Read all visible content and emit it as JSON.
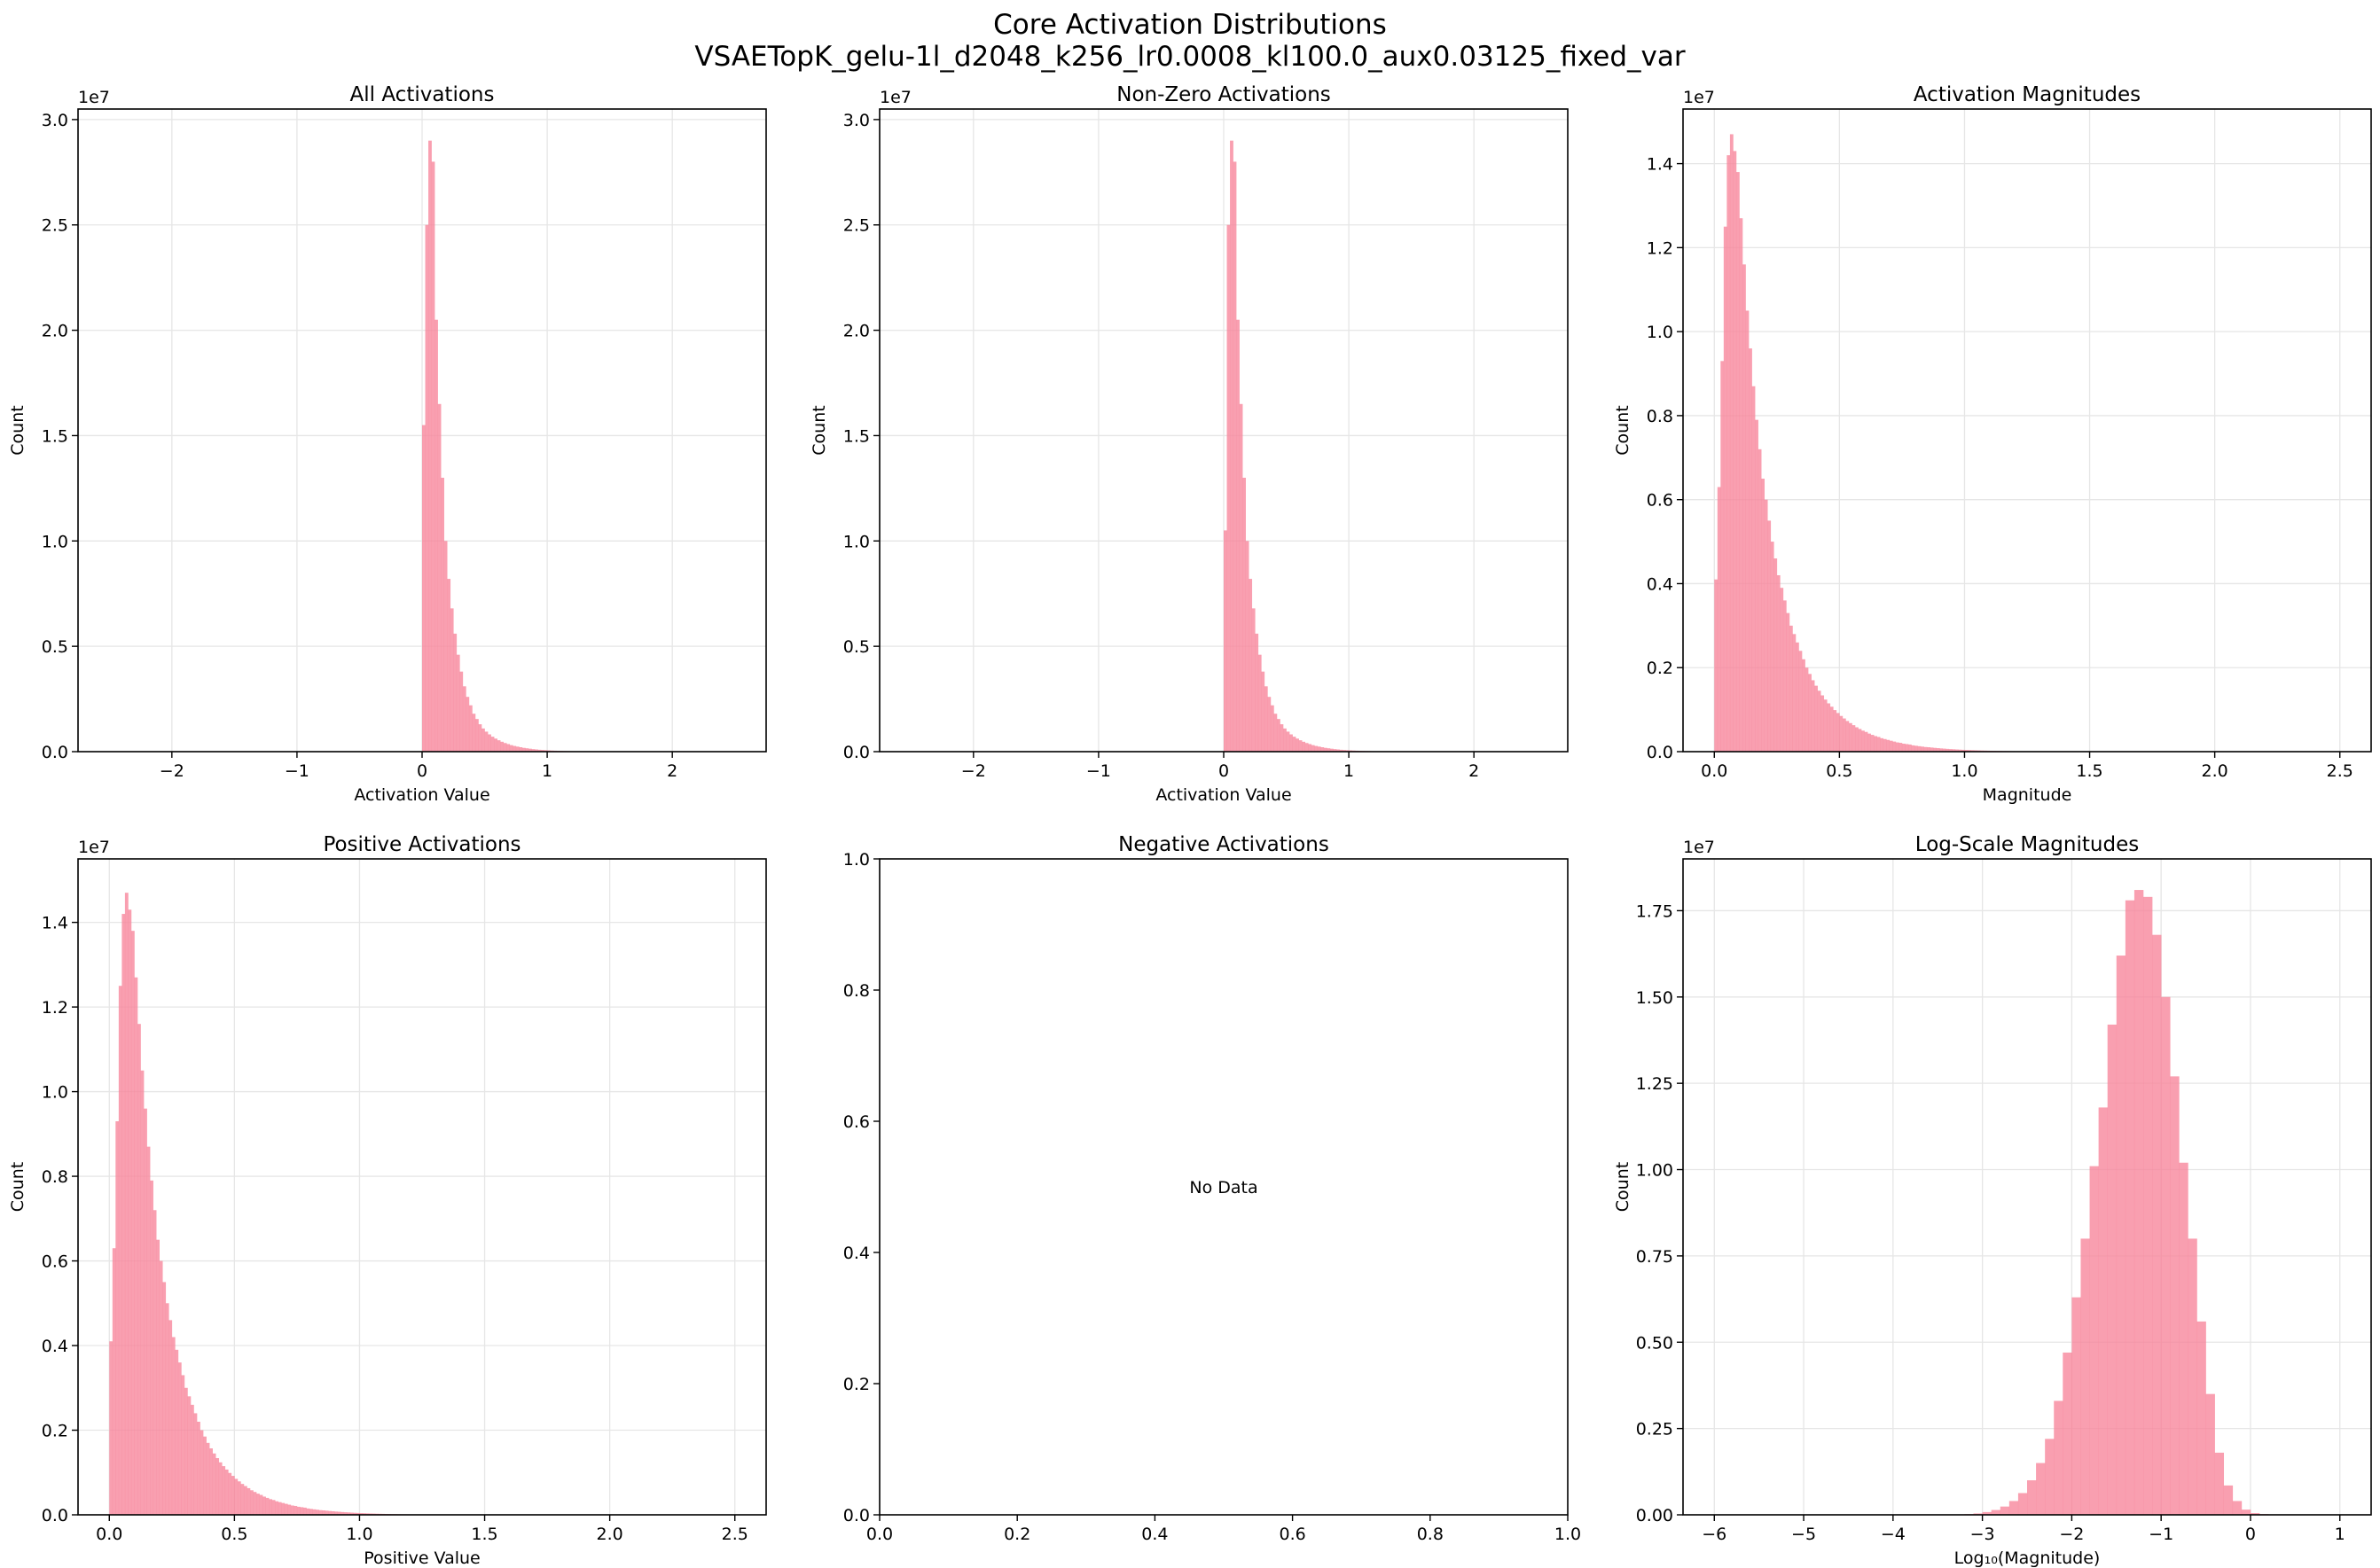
{
  "figure": {
    "title_line1": "Core Activation Distributions",
    "title_line2": "VSAETopK_gelu-1l_d2048_k256_lr0.0008_kl100.0_aux0.03125_fixed_var",
    "bar_color": "#f7879c",
    "grid_color": "#e6e6e6"
  },
  "chart_data": [
    {
      "type": "bar",
      "title": "All Activations",
      "xlabel": "Activation Value",
      "ylabel": "Count",
      "offset_label": "1e7",
      "xlim": [
        -2.75,
        2.75
      ],
      "ylim": [
        0,
        3.05
      ],
      "xticks": [
        -2,
        -1,
        0,
        1,
        2
      ],
      "xtick_labels": [
        "−2",
        "−1",
        "0",
        "1",
        "2"
      ],
      "yticks": [
        0,
        0.5,
        1.0,
        1.5,
        2.0,
        2.5,
        3.0
      ],
      "ytick_labels": [
        "0.0",
        "0.5",
        "1.0",
        "1.5",
        "2.0",
        "2.5",
        "3.0"
      ],
      "bin_start": 0.0,
      "bin_width": 0.025,
      "values": [
        1.55,
        2.5,
        2.9,
        2.8,
        2.05,
        1.65,
        1.3,
        1.0,
        0.82,
        0.68,
        0.56,
        0.46,
        0.38,
        0.31,
        0.26,
        0.22,
        0.18,
        0.155,
        0.13,
        0.11,
        0.095,
        0.082,
        0.071,
        0.062,
        0.054,
        0.047,
        0.041,
        0.036,
        0.031,
        0.027,
        0.024,
        0.021,
        0.018,
        0.016,
        0.014,
        0.012,
        0.0105,
        0.009,
        0.008,
        0.007,
        0.006,
        0.0052,
        0.0045,
        0.0039,
        0.0034,
        0.003,
        0.0026,
        0.0022,
        0.0019,
        0.0017,
        0.0014,
        0.0012,
        0.001,
        0.0008,
        0.0007,
        0.0005,
        0.0004,
        0.0003
      ]
    },
    {
      "type": "bar",
      "title": "Non-Zero Activations",
      "xlabel": "Activation Value",
      "ylabel": "Count",
      "offset_label": "1e7",
      "xlim": [
        -2.75,
        2.75
      ],
      "ylim": [
        0,
        3.05
      ],
      "xticks": [
        -2,
        -1,
        0,
        1,
        2
      ],
      "xtick_labels": [
        "−2",
        "−1",
        "0",
        "1",
        "2"
      ],
      "yticks": [
        0,
        0.5,
        1.0,
        1.5,
        2.0,
        2.5,
        3.0
      ],
      "ytick_labels": [
        "0.0",
        "0.5",
        "1.0",
        "1.5",
        "2.0",
        "2.5",
        "3.0"
      ],
      "bin_start": 0.0,
      "bin_width": 0.025,
      "values": [
        1.05,
        2.5,
        2.9,
        2.8,
        2.05,
        1.65,
        1.3,
        1.0,
        0.82,
        0.68,
        0.56,
        0.46,
        0.38,
        0.31,
        0.26,
        0.22,
        0.18,
        0.155,
        0.13,
        0.11,
        0.095,
        0.082,
        0.071,
        0.062,
        0.054,
        0.047,
        0.041,
        0.036,
        0.031,
        0.027,
        0.024,
        0.021,
        0.018,
        0.016,
        0.014,
        0.012,
        0.0105,
        0.009,
        0.008,
        0.007,
        0.006,
        0.0052,
        0.0045,
        0.0039,
        0.0034,
        0.003,
        0.0026,
        0.0022,
        0.0019,
        0.0017,
        0.0014,
        0.0012,
        0.001,
        0.0008,
        0.0007,
        0.0005,
        0.0004,
        0.0003
      ]
    },
    {
      "type": "bar",
      "title": "Activation Magnitudes",
      "xlabel": "Magnitude",
      "ylabel": "Count",
      "offset_label": "1e7",
      "xlim": [
        -0.125,
        2.625
      ],
      "ylim": [
        0,
        1.53
      ],
      "xticks": [
        0,
        0.5,
        1.0,
        1.5,
        2.0,
        2.5
      ],
      "xtick_labels": [
        "0.0",
        "0.5",
        "1.0",
        "1.5",
        "2.0",
        "2.5"
      ],
      "yticks": [
        0,
        0.2,
        0.4,
        0.6,
        0.8,
        1.0,
        1.2,
        1.4
      ],
      "ytick_labels": [
        "0.0",
        "0.2",
        "0.4",
        "0.6",
        "0.8",
        "1.0",
        "1.2",
        "1.4"
      ],
      "bin_start": 0.0,
      "bin_width": 0.0125,
      "values": [
        0.41,
        0.63,
        0.93,
        1.25,
        1.42,
        1.47,
        1.43,
        1.38,
        1.27,
        1.16,
        1.05,
        0.96,
        0.87,
        0.79,
        0.72,
        0.65,
        0.6,
        0.55,
        0.5,
        0.46,
        0.42,
        0.39,
        0.36,
        0.33,
        0.3,
        0.28,
        0.26,
        0.24,
        0.22,
        0.2,
        0.185,
        0.17,
        0.157,
        0.145,
        0.134,
        0.124,
        0.115,
        0.107,
        0.099,
        0.092,
        0.085,
        0.079,
        0.073,
        0.068,
        0.063,
        0.058,
        0.054,
        0.05,
        0.047,
        0.043,
        0.04,
        0.037,
        0.035,
        0.032,
        0.03,
        0.028,
        0.026,
        0.024,
        0.022,
        0.021,
        0.019,
        0.018,
        0.017,
        0.015,
        0.014,
        0.013,
        0.012,
        0.011,
        0.0105,
        0.0098,
        0.009,
        0.0084,
        0.0077,
        0.0072,
        0.0066,
        0.0061,
        0.0057,
        0.0052,
        0.0048,
        0.0044,
        0.0041,
        0.0038,
        0.0035,
        0.0032,
        0.003,
        0.0027,
        0.0025,
        0.0023,
        0.0021,
        0.0019,
        0.0017,
        0.0016,
        0.0014,
        0.0013,
        0.0012,
        0.0011,
        0.001,
        0.0009,
        0.0008,
        0.0007,
        0.0006,
        0.0005,
        0.0004,
        0.0003
      ]
    },
    {
      "type": "bar",
      "title": "Positive Activations",
      "xlabel": "Positive Value",
      "ylabel": "Count",
      "offset_label": "1e7",
      "xlim": [
        -0.125,
        2.625
      ],
      "ylim": [
        0,
        1.55
      ],
      "xticks": [
        0,
        0.5,
        1.0,
        1.5,
        2.0,
        2.5
      ],
      "xtick_labels": [
        "0.0",
        "0.5",
        "1.0",
        "1.5",
        "2.0",
        "2.5"
      ],
      "yticks": [
        0,
        0.2,
        0.4,
        0.6,
        0.8,
        1.0,
        1.2,
        1.4
      ],
      "ytick_labels": [
        "0.0",
        "0.2",
        "0.4",
        "0.6",
        "0.8",
        "1.0",
        "1.2",
        "1.4"
      ],
      "bin_start": 0.0,
      "bin_width": 0.0125,
      "values": [
        0.41,
        0.63,
        0.93,
        1.25,
        1.42,
        1.47,
        1.43,
        1.38,
        1.27,
        1.16,
        1.05,
        0.96,
        0.87,
        0.79,
        0.72,
        0.65,
        0.6,
        0.55,
        0.5,
        0.46,
        0.42,
        0.39,
        0.36,
        0.33,
        0.3,
        0.28,
        0.26,
        0.24,
        0.22,
        0.2,
        0.185,
        0.17,
        0.157,
        0.145,
        0.134,
        0.124,
        0.115,
        0.107,
        0.099,
        0.092,
        0.085,
        0.079,
        0.073,
        0.068,
        0.063,
        0.058,
        0.054,
        0.05,
        0.047,
        0.043,
        0.04,
        0.037,
        0.035,
        0.032,
        0.03,
        0.028,
        0.026,
        0.024,
        0.022,
        0.021,
        0.019,
        0.018,
        0.017,
        0.015,
        0.014,
        0.013,
        0.012,
        0.011,
        0.0105,
        0.0098,
        0.009,
        0.0084,
        0.0077,
        0.0072,
        0.0066,
        0.0061,
        0.0057,
        0.0052,
        0.0048,
        0.0044,
        0.0041,
        0.0038,
        0.0035,
        0.0032,
        0.003,
        0.0027,
        0.0025,
        0.0023,
        0.0021,
        0.0019,
        0.0017,
        0.0016,
        0.0014,
        0.0013,
        0.0012,
        0.0011,
        0.001,
        0.0009,
        0.0008,
        0.0007,
        0.0006,
        0.0005,
        0.0004,
        0.0003
      ]
    },
    {
      "type": "bar",
      "title": "Negative Activations",
      "xlabel": "",
      "ylabel": "",
      "offset_label": "",
      "xlim": [
        0,
        1
      ],
      "ylim": [
        0,
        1
      ],
      "xticks": [
        0,
        0.2,
        0.4,
        0.6,
        0.8,
        1.0
      ],
      "xtick_labels": [
        "0.0",
        "0.2",
        "0.4",
        "0.6",
        "0.8",
        "1.0"
      ],
      "yticks": [
        0,
        0.2,
        0.4,
        0.6,
        0.8,
        1.0
      ],
      "ytick_labels": [
        "0.0",
        "0.2",
        "0.4",
        "0.6",
        "0.8",
        "1.0"
      ],
      "grid": false,
      "values": [],
      "annotation": "No Data"
    },
    {
      "type": "bar",
      "title": "Log-Scale Magnitudes",
      "xlabel": "Log₁₀(Magnitude)",
      "ylabel": "Count",
      "offset_label": "1e7",
      "xlim": [
        -6.35,
        1.35
      ],
      "ylim": [
        0,
        1.9
      ],
      "xticks": [
        -6,
        -5,
        -4,
        -3,
        -2,
        -1,
        0,
        1
      ],
      "xtick_labels": [
        "−6",
        "−5",
        "−4",
        "−3",
        "−2",
        "−1",
        "0",
        "1"
      ],
      "yticks": [
        0,
        0.25,
        0.5,
        0.75,
        1.0,
        1.25,
        1.5,
        1.75
      ],
      "ytick_labels": [
        "0.00",
        "0.25",
        "0.50",
        "0.75",
        "1.00",
        "1.25",
        "1.50",
        "1.75"
      ],
      "bin_start": -3.3,
      "bin_width": 0.1,
      "values": [
        0.001,
        0.002,
        0.004,
        0.008,
        0.014,
        0.024,
        0.04,
        0.063,
        0.1,
        0.15,
        0.22,
        0.33,
        0.47,
        0.63,
        0.8,
        1.01,
        1.18,
        1.42,
        1.62,
        1.78,
        1.81,
        1.79,
        1.68,
        1.5,
        1.27,
        1.02,
        0.8,
        0.56,
        0.35,
        0.18,
        0.085,
        0.04,
        0.015,
        0.005,
        0.002
      ]
    }
  ]
}
